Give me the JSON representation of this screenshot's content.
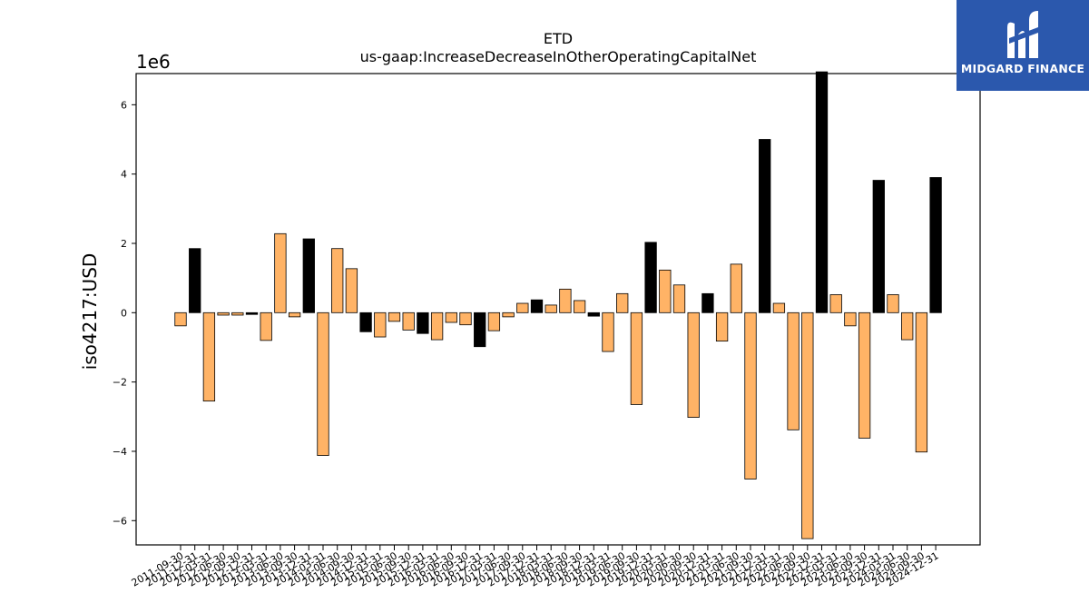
{
  "chart_data": {
    "type": "bar",
    "title": "ETD",
    "subtitle": "us-gaap:IncreaseDecreaseInOtherOperatingCapitalNet",
    "ylabel": "iso4217:USD",
    "xlabel": "",
    "scale_label": "1e6",
    "ylim": [
      -6.7,
      6.9
    ],
    "yticks": [
      6,
      4,
      2,
      0,
      -2,
      -4,
      -6
    ],
    "ytick_labels": [
      "6",
      "4",
      "2",
      "0",
      "−2",
      "−4",
      "−6"
    ],
    "grid": false,
    "legend": "none",
    "colors": {
      "positive": "#000000",
      "negative": "#ffb366",
      "edge": "#000000"
    },
    "categories": [
      "2011-09-30",
      "2011-12-31",
      "2012-03-31",
      "2012-06-30",
      "2012-09-30",
      "2012-12-31",
      "2013-03-31",
      "2013-06-30",
      "2013-09-30",
      "2013-12-31",
      "2014-03-31",
      "2014-06-30",
      "2014-09-30",
      "2014-12-31",
      "2015-03-31",
      "2015-06-30",
      "2015-09-30",
      "2015-12-31",
      "2016-03-31",
      "2016-06-30",
      "2016-09-30",
      "2016-12-31",
      "2017-03-31",
      "2017-06-30",
      "2017-09-30",
      "2017-12-31",
      "2018-03-31",
      "2018-06-30",
      "2018-09-30",
      "2018-12-31",
      "2019-03-31",
      "2019-06-30",
      "2019-09-30",
      "2019-12-31",
      "2020-03-31",
      "2020-06-30",
      "2020-09-30",
      "2020-12-31",
      "2021-03-31",
      "2021-06-30",
      "2021-09-30",
      "2021-12-31",
      "2022-03-31",
      "2022-06-30",
      "2022-09-30",
      "2022-12-31",
      "2023-03-31",
      "2023-06-30",
      "2023-09-30",
      "2023-12-31",
      "2024-03-31",
      "2024-06-30",
      "2024-09-30",
      "2024-12-31"
    ],
    "values": [
      -0.38,
      1.85,
      -2.55,
      -0.07,
      -0.07,
      -0.05,
      -0.8,
      2.28,
      -0.12,
      2.13,
      -4.12,
      1.85,
      1.27,
      -0.55,
      -0.7,
      -0.25,
      -0.5,
      -0.6,
      -0.78,
      -0.28,
      -0.35,
      -0.98,
      -0.52,
      -0.12,
      0.27,
      0.37,
      0.22,
      0.68,
      0.35,
      -0.1,
      -1.12,
      0.55,
      -2.65,
      2.03,
      1.23,
      0.8,
      -3.02,
      0.55,
      -0.82,
      1.4,
      -4.8,
      5.0,
      0.27,
      -3.38,
      -6.52,
      6.95,
      0.52,
      -0.38,
      -3.62,
      3.82,
      0.52,
      -0.78,
      -4.02,
      3.9
    ],
    "bar_colors": [
      "#ffb366",
      "#000000",
      "#ffb366",
      "#ffb366",
      "#ffb366",
      "#000000",
      "#ffb366",
      "#ffb366",
      "#ffb366",
      "#000000",
      "#ffb366",
      "#ffb366",
      "#ffb366",
      "#000000",
      "#ffb366",
      "#ffb366",
      "#ffb366",
      "#000000",
      "#ffb366",
      "#ffb366",
      "#ffb366",
      "#000000",
      "#ffb366",
      "#ffb366",
      "#ffb366",
      "#000000",
      "#ffb366",
      "#ffb366",
      "#ffb366",
      "#000000",
      "#ffb366",
      "#ffb366",
      "#ffb366",
      "#000000",
      "#ffb366",
      "#ffb366",
      "#ffb366",
      "#000000",
      "#ffb366",
      "#ffb366",
      "#ffb366",
      "#000000",
      "#ffb366",
      "#ffb366",
      "#ffb366",
      "#000000",
      "#ffb366",
      "#ffb366",
      "#ffb366",
      "#000000",
      "#ffb366",
      "#ffb366",
      "#ffb366",
      "#000000"
    ]
  },
  "logo": {
    "text": "MIDGARD FINANCE",
    "background": "#2b58ad"
  }
}
